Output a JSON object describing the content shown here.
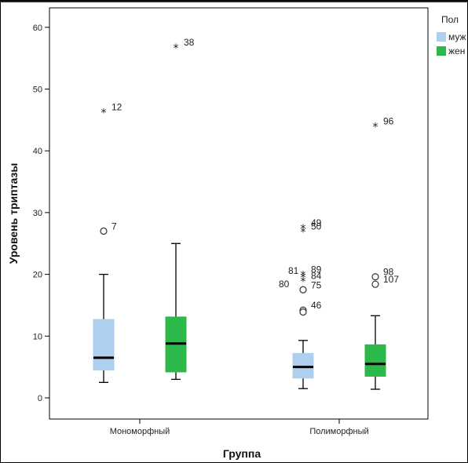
{
  "chart_data": {
    "type": "boxplot",
    "xlabel": "Группа",
    "ylabel": "Уровень триптазы",
    "ylim": [
      -3,
      63
    ],
    "yticks": [
      0,
      10,
      20,
      30,
      40,
      50,
      60
    ],
    "categories": [
      "Мономорфный",
      "Полиморфный"
    ],
    "legend": {
      "title": "Пол",
      "position": "right"
    },
    "series": [
      {
        "name": "муж",
        "color": "#aecfed",
        "boxes": [
          {
            "category": "Мономорфный",
            "whisker_low": 2.5,
            "q1": 4.5,
            "median": 6.5,
            "q3": 12.7,
            "whisker_high": 20,
            "outliers": [
              {
                "value": 27,
                "kind": "circle",
                "label": "7"
              },
              {
                "value": 46.3,
                "kind": "star",
                "label": "12"
              }
            ]
          },
          {
            "category": "Полиморфный",
            "whisker_low": 1.5,
            "q1": 3.2,
            "median": 5,
            "q3": 7.2,
            "whisker_high": 9.3,
            "outliers": [
              {
                "value": 14.2,
                "kind": "circle",
                "label": "46"
              },
              {
                "value": 13.9,
                "kind": "circle",
                "label": ""
              },
              {
                "value": 17.5,
                "kind": "circle",
                "label": "75"
              },
              {
                "value": 19.0,
                "kind": "star",
                "label": "84"
              },
              {
                "value": 20.0,
                "kind": "star",
                "label": "89"
              },
              {
                "value": 19.6,
                "kind": "star",
                "label": ""
              },
              {
                "value": 27.0,
                "kind": "star",
                "label": "50"
              },
              {
                "value": 27.6,
                "kind": "star",
                "label": "49"
              }
            ]
          }
        ]
      },
      {
        "name": "жен",
        "color": "#2db84b",
        "boxes": [
          {
            "category": "Мономорфный",
            "whisker_low": 3,
            "q1": 4.2,
            "median": 8.8,
            "q3": 13.1,
            "whisker_high": 25,
            "outliers": [
              {
                "value": 56.8,
                "kind": "star",
                "label": "38"
              }
            ]
          },
          {
            "category": "Полиморфный",
            "whisker_low": 1.4,
            "q1": 3.5,
            "median": 5.5,
            "q3": 8.6,
            "whisker_high": 13.3,
            "outliers": [
              {
                "value": 18.4,
                "kind": "circle",
                "label": "107"
              },
              {
                "value": 19.6,
                "kind": "circle",
                "label": "98"
              },
              {
                "value": 44,
                "kind": "star",
                "label": "96"
              }
            ]
          }
        ]
      }
    ],
    "extra_labels": [
      {
        "text": "81",
        "near": "Полиморфный-муж-star-20"
      },
      {
        "text": "80",
        "near": "Полиморфный-муж-circle-17.5"
      }
    ]
  }
}
